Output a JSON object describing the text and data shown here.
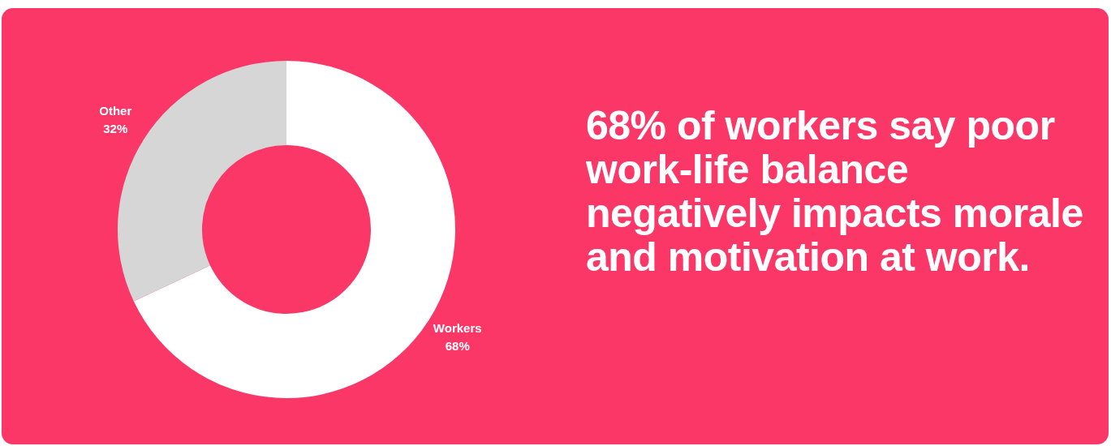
{
  "chart_data": {
    "type": "donut",
    "title": "68% of workers say poor work-life balance negatively impacts morale and motivation at work.",
    "categories": [
      "Workers",
      "Other"
    ],
    "values": [
      68,
      32
    ],
    "colors": [
      "#ffffff",
      "#d6d6d6"
    ],
    "value_labels": [
      "68%",
      "32%"
    ],
    "legend": false
  }
}
